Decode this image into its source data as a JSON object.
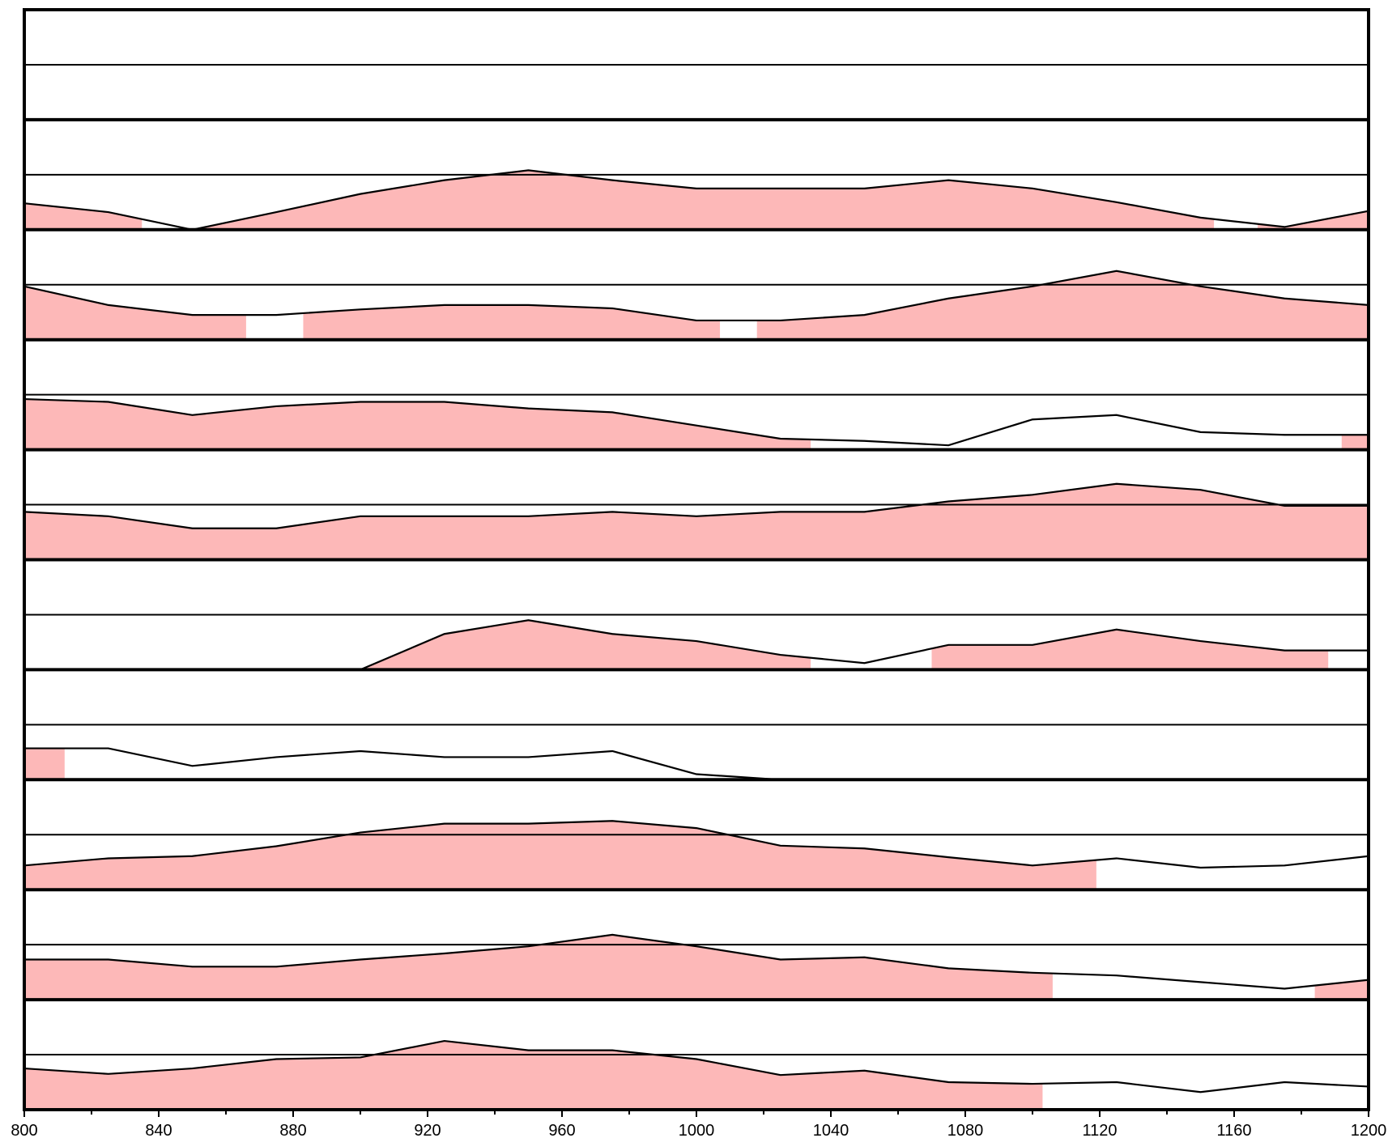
{
  "chart_data": {
    "type": "area",
    "title": "",
    "xlabel": "",
    "ylabel": "",
    "xlim": [
      800,
      1200
    ],
    "x_ticks": [
      "800",
      "840",
      "880",
      "920",
      "960",
      "1000",
      "1040",
      "1080",
      "1120",
      "1160",
      "1200"
    ],
    "grid": false,
    "legend": "none",
    "colors": {
      "fill": "#fdb8b8",
      "line": "#000000",
      "border": "#000000"
    },
    "tracks": [
      {
        "x": [],
        "y": [],
        "fill_ranges": []
      },
      {
        "x": [
          800,
          825,
          850,
          875,
          900,
          925,
          950,
          975,
          1000,
          1025,
          1050,
          1075,
          1100,
          1125,
          1150,
          1175,
          1200
        ],
        "y": [
          0.48,
          0.32,
          0.0,
          0.32,
          0.65,
          0.9,
          1.08,
          0.9,
          0.75,
          0.75,
          0.75,
          0.9,
          0.75,
          0.5,
          0.22,
          0.05,
          0.34
        ],
        "fill_ranges": [
          [
            800,
            835
          ],
          [
            850,
            1154
          ],
          [
            1167,
            1200
          ]
        ]
      },
      {
        "x": [
          800,
          825,
          850,
          875,
          900,
          925,
          950,
          975,
          1000,
          1025,
          1050,
          1075,
          1100,
          1125,
          1150,
          1175,
          1200
        ],
        "y": [
          0.97,
          0.63,
          0.45,
          0.45,
          0.55,
          0.63,
          0.63,
          0.57,
          0.35,
          0.35,
          0.45,
          0.75,
          0.97,
          1.25,
          0.97,
          0.75,
          0.63
        ],
        "fill_ranges": [
          [
            800,
            866
          ],
          [
            883,
            1007
          ],
          [
            1018,
            1200
          ]
        ]
      },
      {
        "x": [
          800,
          825,
          850,
          875,
          900,
          925,
          950,
          975,
          1000,
          1025,
          1050,
          1075,
          1100,
          1125,
          1150,
          1175,
          1200
        ],
        "y": [
          0.92,
          0.87,
          0.63,
          0.79,
          0.87,
          0.87,
          0.75,
          0.68,
          0.44,
          0.2,
          0.16,
          0.08,
          0.55,
          0.63,
          0.32,
          0.27,
          0.27
        ],
        "fill_ranges": [
          [
            800,
            1034
          ],
          [
            1192,
            1200
          ]
        ]
      },
      {
        "x": [
          800,
          825,
          850,
          875,
          900,
          925,
          950,
          975,
          1000,
          1025,
          1050,
          1075,
          1100,
          1125,
          1150,
          1175,
          1200
        ],
        "y": [
          0.87,
          0.79,
          0.57,
          0.57,
          0.79,
          0.79,
          0.79,
          0.87,
          0.79,
          0.87,
          0.87,
          1.06,
          1.18,
          1.38,
          1.27,
          0.98,
          0.98
        ],
        "fill_ranges": [
          [
            800,
            1200
          ]
        ]
      },
      {
        "x": [
          800,
          825,
          850,
          875,
          900,
          925,
          950,
          975,
          1000,
          1025,
          1050,
          1075,
          1100,
          1125,
          1150,
          1175,
          1200
        ],
        "y": [
          0.0,
          0.0,
          0.0,
          0.0,
          0.0,
          0.65,
          0.9,
          0.65,
          0.52,
          0.27,
          0.12,
          0.45,
          0.45,
          0.73,
          0.52,
          0.35,
          0.35
        ],
        "fill_ranges": [
          [
            879,
            1034
          ],
          [
            1070,
            1188
          ]
        ]
      },
      {
        "x": [
          800,
          825,
          850,
          875,
          900,
          925,
          950,
          975,
          1000,
          1025
        ],
        "y": [
          0.57,
          0.57,
          0.25,
          0.41,
          0.52,
          0.41,
          0.41,
          0.52,
          0.1,
          0.0
        ],
        "fill_ranges": [
          [
            800,
            812
          ]
        ]
      },
      {
        "x": [
          800,
          825,
          850,
          875,
          900,
          925,
          950,
          975,
          1000,
          1025,
          1050,
          1075,
          1100,
          1125,
          1150,
          1175,
          1200
        ],
        "y": [
          0.44,
          0.57,
          0.61,
          0.79,
          1.04,
          1.2,
          1.2,
          1.25,
          1.12,
          0.8,
          0.75,
          0.59,
          0.44,
          0.57,
          0.4,
          0.44,
          0.61
        ],
        "fill_ranges": [
          [
            800,
            1119
          ]
        ]
      },
      {
        "x": [
          800,
          825,
          850,
          875,
          900,
          925,
          950,
          975,
          1000,
          1025,
          1050,
          1075,
          1100,
          1125,
          1150,
          1175,
          1200
        ],
        "y": [
          0.73,
          0.73,
          0.6,
          0.6,
          0.73,
          0.84,
          0.97,
          1.18,
          0.97,
          0.73,
          0.77,
          0.57,
          0.49,
          0.44,
          0.32,
          0.2,
          0.36
        ],
        "fill_ranges": [
          [
            800,
            1106
          ],
          [
            1184,
            1200
          ]
        ]
      },
      {
        "x": [
          800,
          825,
          850,
          875,
          900,
          925,
          950,
          975,
          1000,
          1025,
          1050,
          1075,
          1100,
          1125,
          1150,
          1175,
          1200
        ],
        "y": [
          0.75,
          0.65,
          0.75,
          0.92,
          0.95,
          1.25,
          1.08,
          1.08,
          0.92,
          0.63,
          0.71,
          0.5,
          0.47,
          0.5,
          0.32,
          0.5,
          0.42
        ],
        "fill_ranges": [
          [
            800,
            1103
          ]
        ]
      }
    ]
  }
}
